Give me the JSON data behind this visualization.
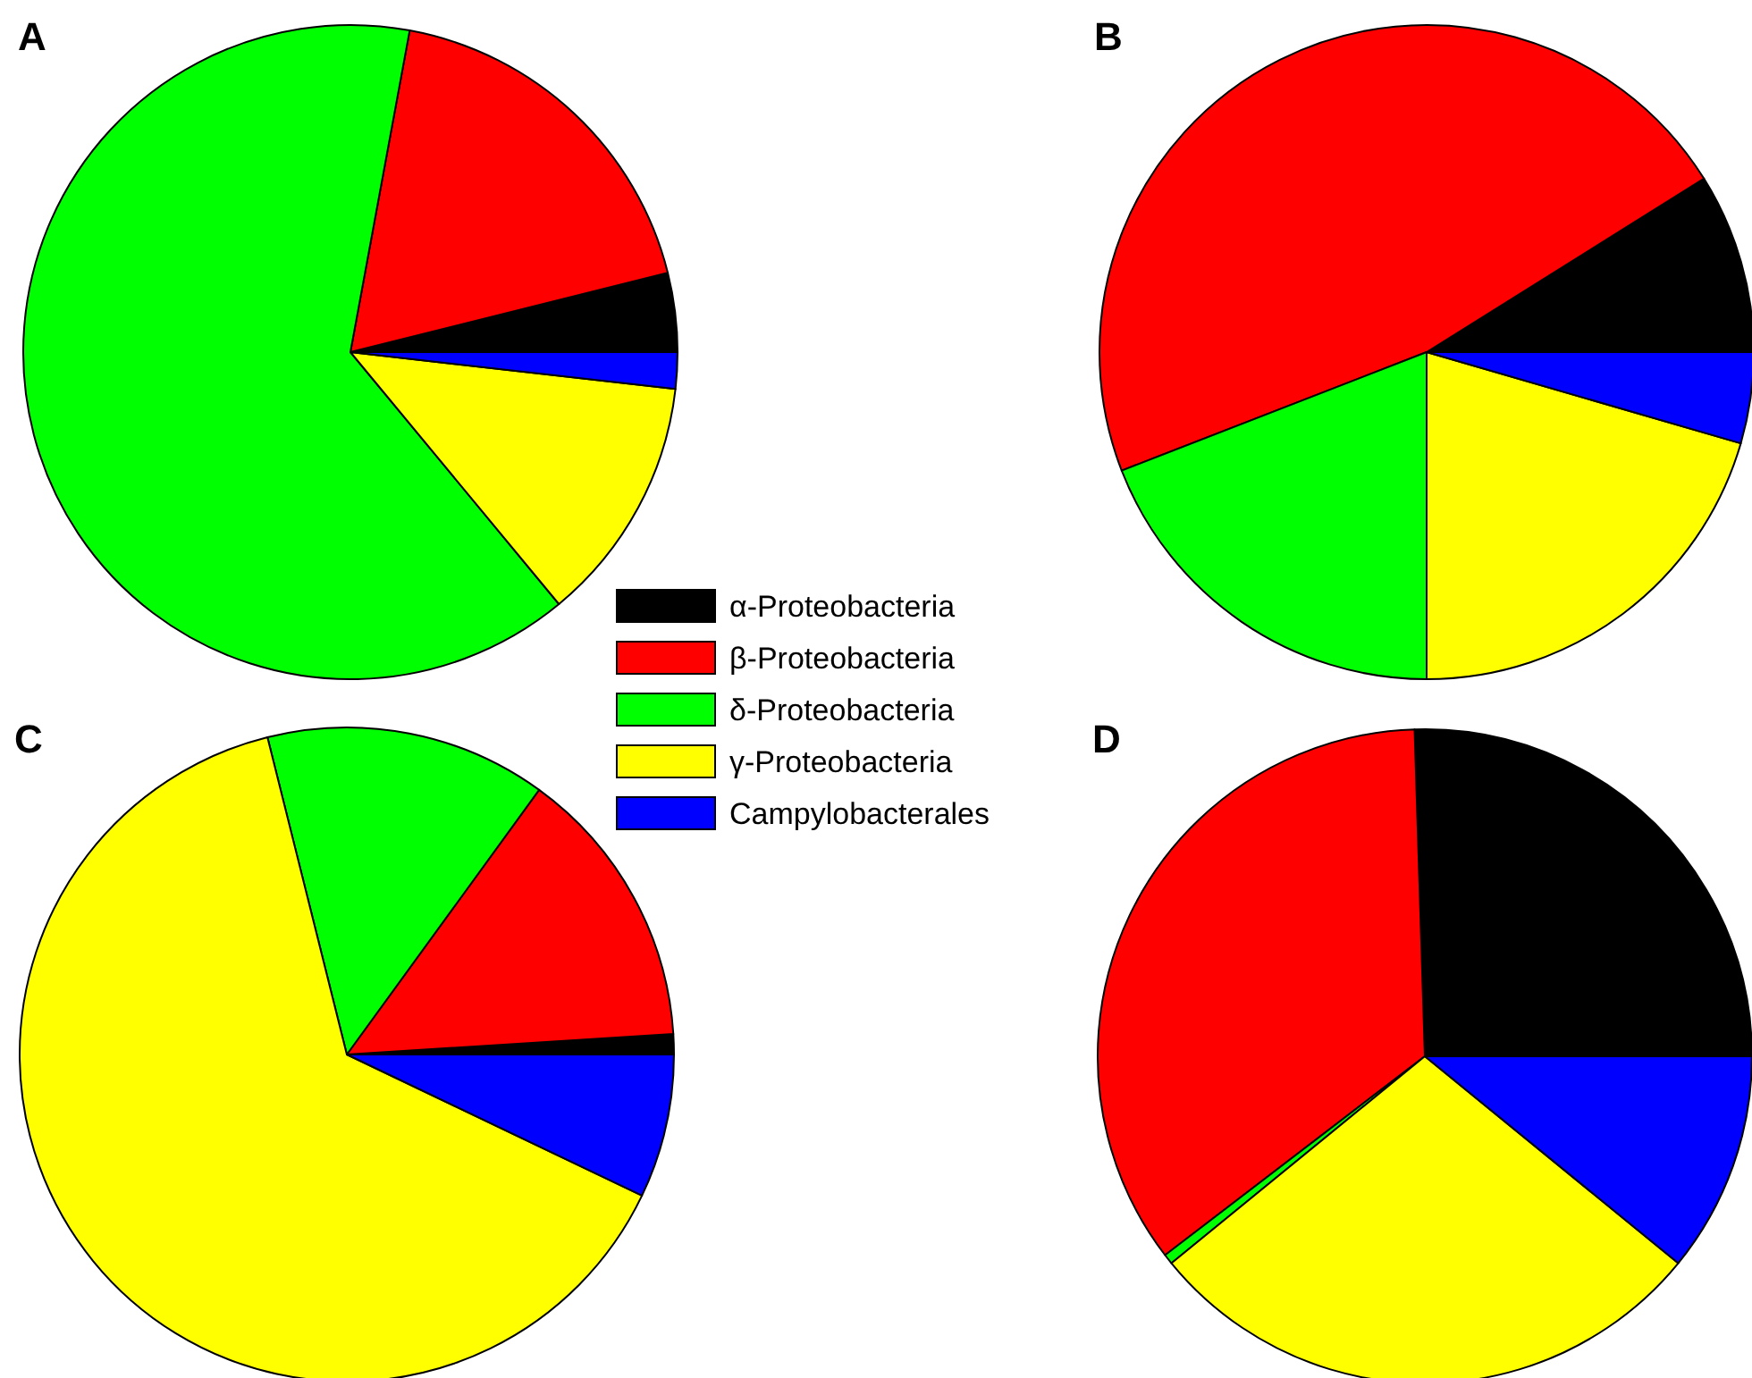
{
  "chart_data": [
    {
      "type": "pie",
      "title": "A",
      "categories": [
        "α-Proteobacteria",
        "β-Proteobacteria",
        "δ-Proteobacteria",
        "γ-Proteobacteria",
        "Campylobacterales"
      ],
      "values": [
        3.9,
        18.2,
        63.9,
        12.2,
        1.8
      ],
      "colors": [
        "#000000",
        "#ff0000",
        "#00ff00",
        "#ffff00",
        "#0000ff"
      ],
      "legend": "bottom right"
    },
    {
      "type": "pie",
      "title": "B",
      "categories": [
        null,
        null,
        null,
        null,
        null
      ],
      "values": [
        8.9,
        47.0,
        19.1,
        20.5,
        4.5
      ],
      "colors": [
        "#000000",
        "#ff0000",
        "#00ff00",
        "#ffff00",
        "#0000ff"
      ]
    },
    {
      "type": "pie",
      "title": "C",
      "categories": [
        null,
        null,
        null,
        null,
        null
      ],
      "values": [
        1.0,
        14.0,
        13.9,
        64.0,
        7.1
      ],
      "colors": [
        "#000000",
        "#ff0000",
        "#00ff00",
        "#ffff00",
        "#0000ff"
      ]
    },
    {
      "type": "pie",
      "title": "D",
      "categories": [
        null,
        null,
        null,
        null,
        null
      ],
      "values": [
        25.5,
        34.9,
        0.5,
        28.2,
        10.9
      ],
      "colors": [
        "#000000",
        "#ff0000",
        "#00ff00",
        "#ffff00",
        "#0000ff"
      ]
    }
  ]
}
